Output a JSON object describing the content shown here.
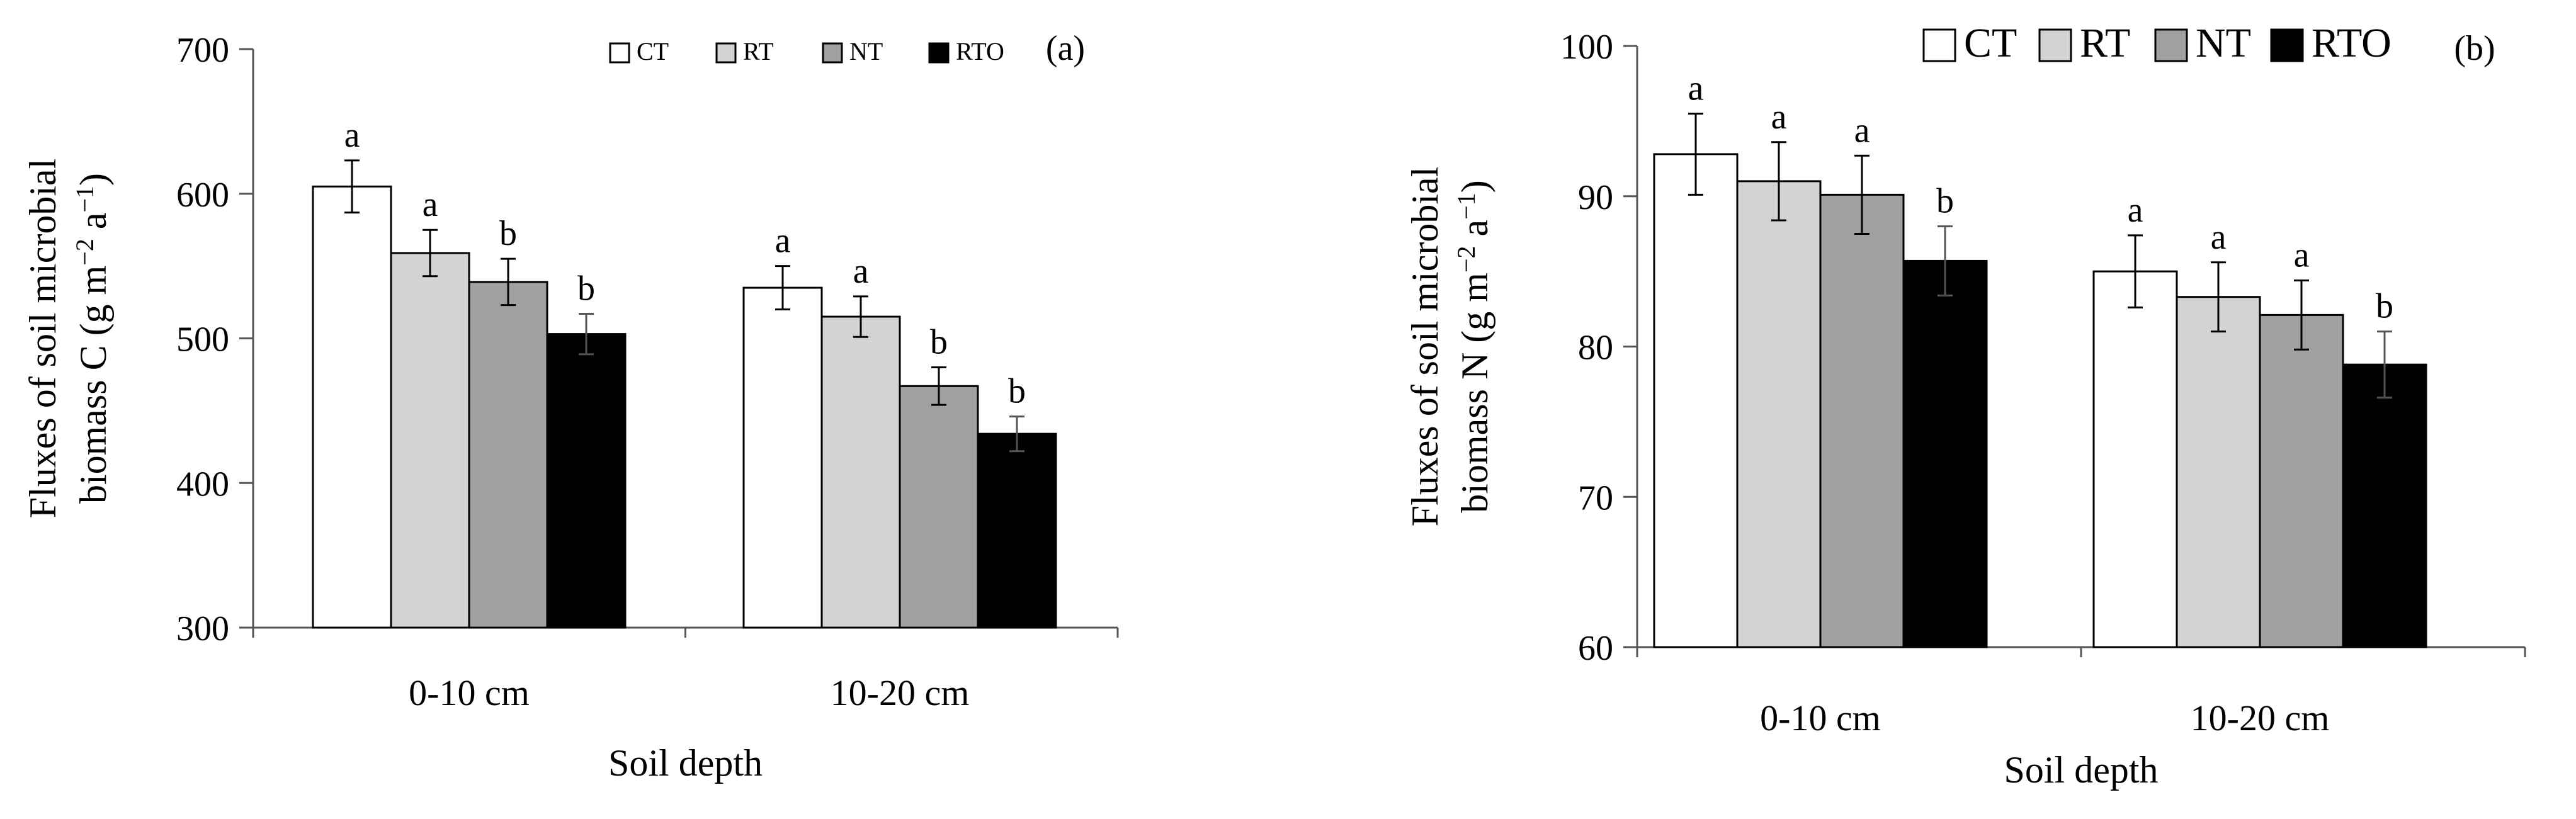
{
  "chart_data": [
    {
      "type": "bar",
      "panel_label": "(a)",
      "title": "",
      "xlabel": "Soil depth",
      "ylabel_line1": "Fluxes of soil microbial",
      "ylabel_line2": "biomass C (g m",
      "ylabel_exp1": "−2",
      "ylabel_mid": " a",
      "ylabel_exp2": "−1",
      "ylabel_end": ")",
      "ylim": [
        300,
        700
      ],
      "yticks": [
        300,
        400,
        500,
        600,
        700
      ],
      "categories": [
        "0-10 cm",
        "10-20 cm"
      ],
      "legend_position": "top-right",
      "series": [
        {
          "name": "CT",
          "color": "#ffffff",
          "values": [
            605,
            535
          ],
          "errors": [
            18,
            15
          ],
          "letters": [
            "a",
            "a"
          ]
        },
        {
          "name": "RT",
          "color": "#d3d3d3",
          "values": [
            559,
            515
          ],
          "errors": [
            16,
            14
          ],
          "letters": [
            "a",
            "a"
          ]
        },
        {
          "name": "NT",
          "color": "#a0a0a0",
          "values": [
            539,
            467
          ],
          "errors": [
            16,
            13
          ],
          "letters": [
            "b",
            "b"
          ]
        },
        {
          "name": "RTO",
          "color": "#000000",
          "values": [
            503,
            434
          ],
          "errors": [
            14,
            12
          ],
          "letters": [
            "b",
            "b"
          ]
        }
      ]
    },
    {
      "type": "bar",
      "panel_label": "(b)",
      "title": "",
      "xlabel": "Soil depth",
      "ylabel_line1": "Fluxes of soil microbial",
      "ylabel_line2": "biomass N (g m",
      "ylabel_exp1": "−2",
      "ylabel_mid": " a",
      "ylabel_exp2": "−1",
      "ylabel_end": ")",
      "ylim": [
        60,
        100
      ],
      "yticks": [
        60,
        70,
        80,
        90,
        100
      ],
      "categories": [
        "0-10 cm",
        "10-20 cm"
      ],
      "legend_position": "top-right",
      "series": [
        {
          "name": "CT",
          "color": "#ffffff",
          "values": [
            92.8,
            85.0
          ],
          "errors": [
            2.7,
            2.4
          ],
          "letters": [
            "a",
            "a"
          ]
        },
        {
          "name": "RT",
          "color": "#d3d3d3",
          "values": [
            91.0,
            83.3
          ],
          "errors": [
            2.6,
            2.3
          ],
          "letters": [
            "a",
            "a"
          ]
        },
        {
          "name": "NT",
          "color": "#a0a0a0",
          "values": [
            90.1,
            82.1
          ],
          "errors": [
            2.6,
            2.3
          ],
          "letters": [
            "a",
            "a"
          ]
        },
        {
          "name": "RTO",
          "color": "#000000",
          "values": [
            85.7,
            78.8
          ],
          "errors": [
            2.3,
            2.2
          ],
          "letters": [
            "b",
            "b"
          ]
        }
      ]
    }
  ]
}
